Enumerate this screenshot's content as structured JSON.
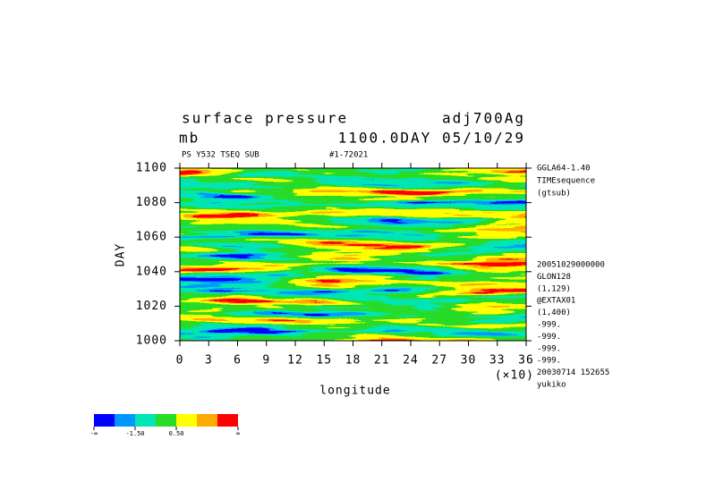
{
  "chart_data": {
    "type": "heatmap",
    "title": "surface pressure",
    "title_right": "adj700Ag",
    "units": "mb",
    "subtitle_right": "1100.0DAY 05/10/29",
    "info_left": "PS Y532 TSEQ SUB",
    "info_mid": "#1-72021",
    "y_label": "DAY",
    "ylim": [
      1000,
      1100
    ],
    "yticks": [
      1000,
      1020,
      1040,
      1060,
      1080,
      1100
    ],
    "x_label": "longitude",
    "x_multiplier": "(×10)",
    "xlim": [
      0,
      36
    ],
    "xticks": [
      0,
      3,
      6,
      9,
      12,
      15,
      18,
      21,
      24,
      27,
      30,
      33,
      36
    ],
    "side_notes_top": [
      "GGLA64-1.40",
      "TIMEsequence",
      "(gtsub)"
    ],
    "side_notes_bottom": [
      "20051029000000",
      "GLON128",
      "(1,129)",
      "@EXTAX01",
      "(1,400)",
      "-999.",
      "-999.",
      "-999.",
      "-999.",
      "20030714 152655",
      "yukiko"
    ],
    "colorbar": {
      "colors": [
        "#0000ff",
        "#0096ff",
        "#00e6b4",
        "#28dc28",
        "#ffff00",
        "#ffaa00",
        "#ff0000"
      ],
      "labels": [
        "-∞",
        null,
        "-1.50",
        null,
        "0.50",
        null,
        null,
        "∞"
      ]
    }
  }
}
